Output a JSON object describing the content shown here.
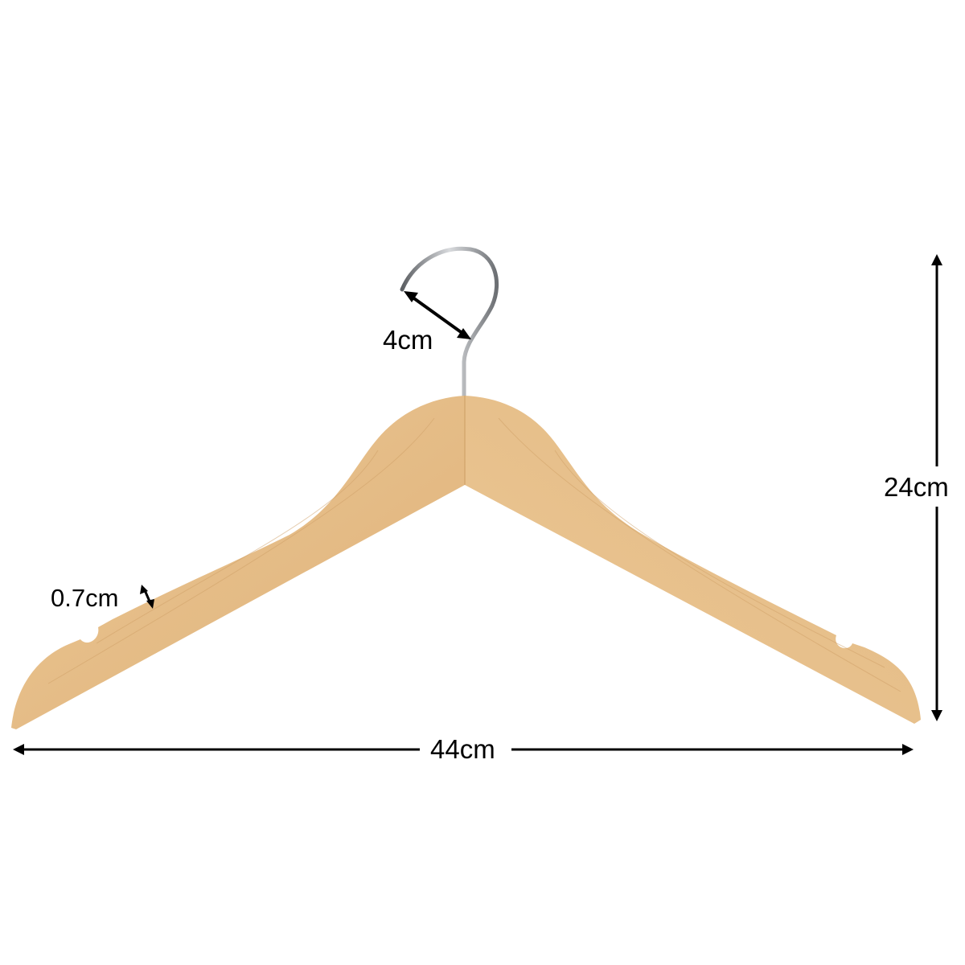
{
  "colors": {
    "wood": "#e7c18f",
    "wood_dark": "#d9ad75",
    "hook": "#8a8d92",
    "arrow": "#000000",
    "background": "#ffffff"
  },
  "dimensions": {
    "hook": "4cm",
    "height": "24cm",
    "thickness": "0.7cm",
    "width": "44cm"
  }
}
